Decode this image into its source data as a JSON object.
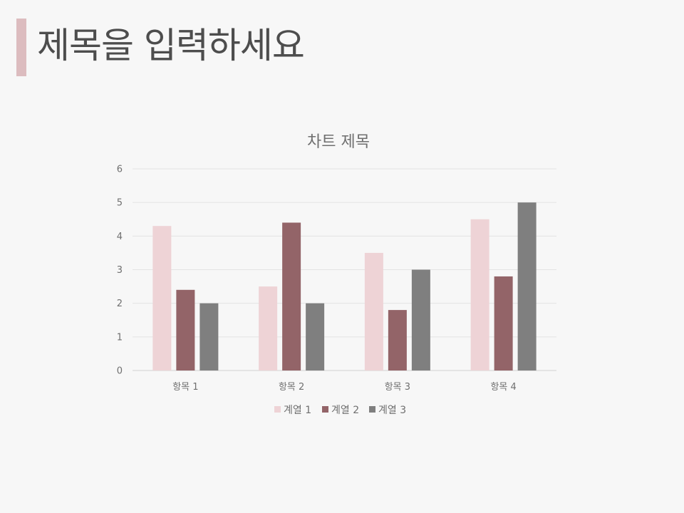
{
  "slide": {
    "title": "제목을 입력하세요"
  },
  "chart_data": {
    "type": "bar",
    "title": "차트 제목",
    "categories": [
      "항목 1",
      "항목 2",
      "항목 3",
      "항목 4"
    ],
    "series": [
      {
        "name": "계열 1",
        "color": "#eed3d6",
        "values": [
          4.3,
          2.5,
          3.5,
          4.5
        ]
      },
      {
        "name": "계열 2",
        "color": "#936468",
        "values": [
          2.4,
          4.4,
          1.8,
          2.8
        ]
      },
      {
        "name": "계열 3",
        "color": "#7f7f7f",
        "values": [
          2,
          2,
          3,
          5
        ]
      }
    ],
    "ylim": [
      0,
      6
    ],
    "yticks": [
      "0",
      "1",
      "2",
      "3",
      "4",
      "5",
      "6"
    ],
    "grid": true,
    "legend_position": "bottom"
  }
}
